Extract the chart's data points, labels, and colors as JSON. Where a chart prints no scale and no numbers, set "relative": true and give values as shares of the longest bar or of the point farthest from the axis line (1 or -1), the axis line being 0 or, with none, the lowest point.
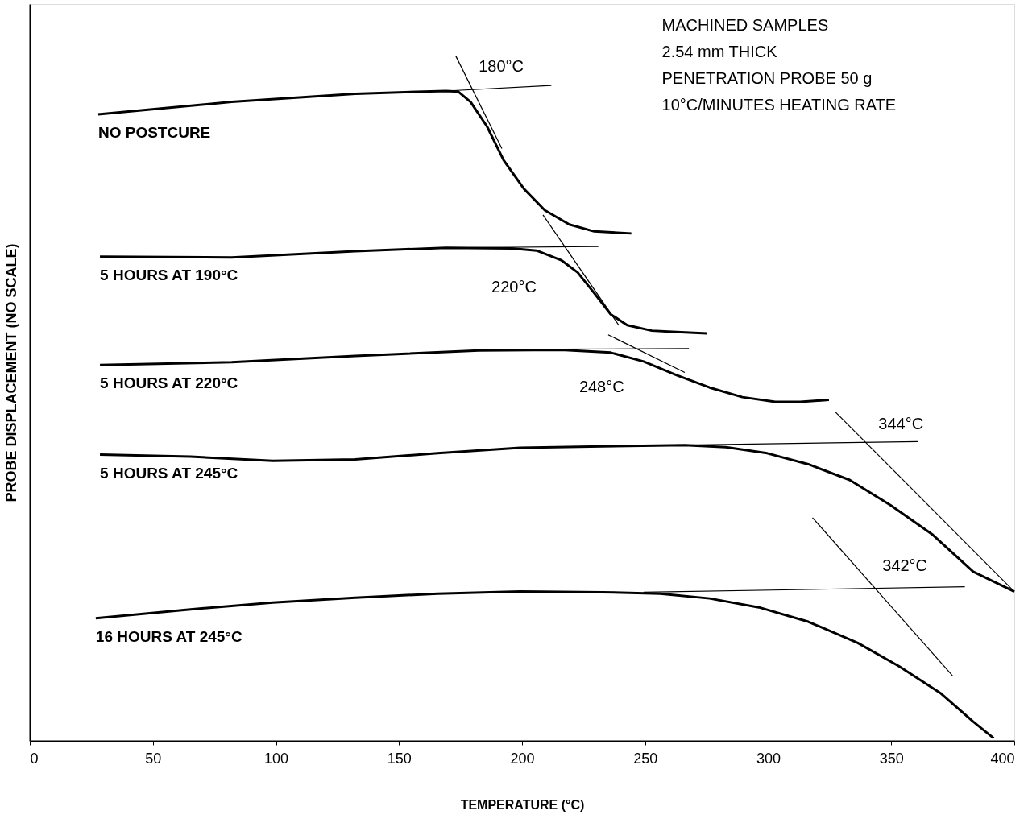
{
  "chart_data": {
    "type": "line",
    "xlabel": "TEMPERATURE (°C)",
    "ylabel": "PROBE DISPLACEMENT (NO SCALE)",
    "relative": true,
    "xlim": [
      0,
      400
    ],
    "xticks": [
      0,
      50,
      100,
      150,
      200,
      250,
      300,
      350,
      400
    ],
    "grid": false,
    "marker": "none",
    "line_style": "solid",
    "series": [
      {
        "name": "NO POSTCURE",
        "color": "#000000",
        "x": [
          27.8,
          82.0,
          132.2,
          169.0,
          174.1,
          179.1,
          185.8,
          192.5,
          200.8,
          209.2,
          219.2,
          229.3,
          244.4
        ],
        "values": [
          0.915,
          0.933,
          0.945,
          0.949,
          0.948,
          0.933,
          0.897,
          0.848,
          0.806,
          0.775,
          0.754,
          0.744,
          0.741
        ]
      },
      {
        "color": "#000000",
        "x": [
          169.0,
          211.9
        ],
        "values": [
          0.949,
          0.957
        ]
      },
      {
        "color": "#000000",
        "x": [
          173.1,
          191.8
        ],
        "values": [
          1.0,
          0.865
        ]
      },
      {
        "name": "5 HOURS AT 190°C",
        "color": "#000000",
        "x": [
          28.5,
          82.0,
          132.2,
          169.0,
          195.8,
          205.9,
          215.9,
          222.6,
          229.3,
          236.0,
          242.7,
          252.7,
          262.8,
          275.1
        ],
        "values": [
          0.707,
          0.706,
          0.715,
          0.72,
          0.719,
          0.716,
          0.702,
          0.684,
          0.654,
          0.623,
          0.607,
          0.599,
          0.597,
          0.595
        ]
      },
      {
        "color": "#000000",
        "x": [
          169.0,
          231.0
        ],
        "values": [
          0.72,
          0.722
        ]
      },
      {
        "color": "#000000",
        "x": [
          208.5,
          239.3
        ],
        "values": [
          0.768,
          0.607
        ]
      },
      {
        "name": "5 HOURS AT 220°C",
        "color": "#000000",
        "x": [
          28.5,
          82.0,
          132.2,
          182.4,
          215.9,
          236.0,
          249.4,
          262.8,
          276.2,
          289.5,
          302.9,
          313.0,
          324.7
        ],
        "values": [
          0.549,
          0.553,
          0.562,
          0.57,
          0.571,
          0.567,
          0.554,
          0.534,
          0.516,
          0.502,
          0.495,
          0.495,
          0.498
        ]
      },
      {
        "color": "#000000",
        "x": [
          215.9,
          267.8
        ],
        "values": [
          0.572,
          0.573
        ]
      },
      {
        "color": "#000000",
        "x": [
          235.0,
          266.1
        ],
        "values": [
          0.593,
          0.538
        ]
      },
      {
        "name": "5 HOURS AT 245°C",
        "color": "#000000",
        "x": [
          28.5,
          65.3,
          98.7,
          132.2,
          165.7,
          199.2,
          232.6,
          266.1,
          282.8,
          299.6,
          316.3,
          333.1,
          349.8,
          366.5,
          383.3,
          400.0
        ],
        "values": [
          0.418,
          0.415,
          0.409,
          0.411,
          0.42,
          0.428,
          0.43,
          0.432,
          0.429,
          0.42,
          0.404,
          0.381,
          0.344,
          0.302,
          0.247,
          0.218
        ]
      },
      {
        "color": "#000000",
        "x": [
          266.1,
          360.8
        ],
        "values": [
          0.432,
          0.437
        ]
      },
      {
        "color": "#000000",
        "x": [
          327.4,
          400.0
        ],
        "values": [
          0.48,
          0.218
        ]
      },
      {
        "name": "16 HOURS AT 245°C",
        "color": "#000000",
        "x": [
          26.8,
          65.3,
          98.7,
          132.2,
          165.7,
          199.2,
          232.6,
          256.1,
          276.2,
          296.2,
          316.3,
          336.4,
          353.1,
          369.9,
          383.3,
          391.6
        ],
        "values": [
          0.179,
          0.192,
          0.202,
          0.209,
          0.215,
          0.218,
          0.217,
          0.215,
          0.208,
          0.195,
          0.174,
          0.143,
          0.109,
          0.07,
          0.028,
          0.004
        ]
      },
      {
        "color": "#000000",
        "x": [
          249.4,
          379.9
        ],
        "values": [
          0.217,
          0.225
        ]
      },
      {
        "color": "#000000",
        "x": [
          318.0,
          374.9
        ],
        "values": [
          0.326,
          0.095
        ]
      }
    ],
    "annotations": [
      "180°C",
      "220°C",
      "248°C",
      "344°C",
      "342°C",
      "MACHINED SAMPLES",
      "2.54 mm THICK",
      "PENETRATION PROBE 50 g",
      "10°C/MINUTES HEATING RATE"
    ]
  }
}
